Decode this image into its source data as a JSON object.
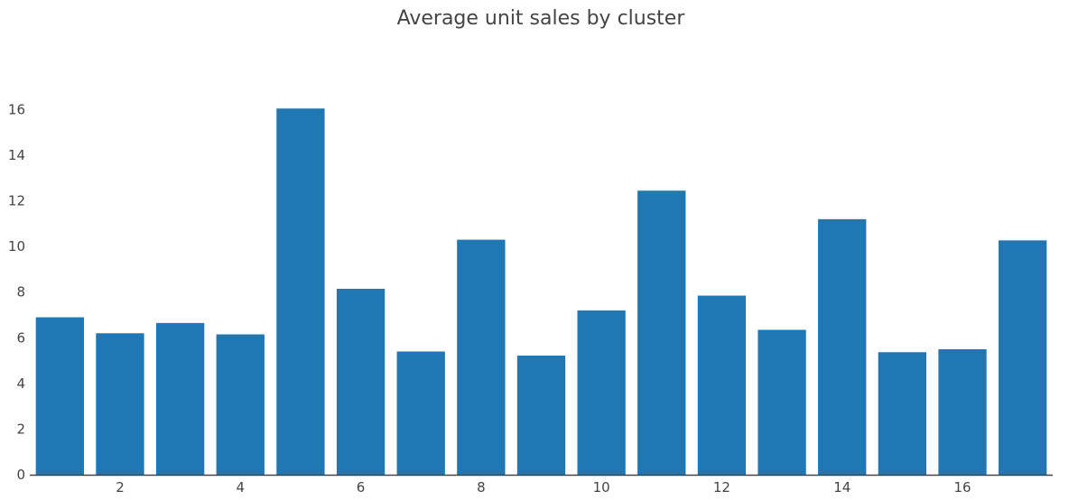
{
  "chart_data": {
    "type": "bar",
    "title": "Average unit sales by cluster",
    "xlabel": "",
    "ylabel": "",
    "x": [
      1,
      2,
      3,
      4,
      5,
      6,
      7,
      8,
      9,
      10,
      11,
      12,
      13,
      14,
      15,
      16,
      17
    ],
    "values": [
      6.9,
      6.2,
      6.65,
      6.15,
      16.05,
      8.15,
      5.4,
      10.3,
      5.22,
      7.2,
      12.45,
      7.85,
      6.35,
      11.2,
      5.37,
      5.5,
      10.27
    ],
    "x_tick_labels": [
      "2",
      "4",
      "6",
      "8",
      "10",
      "12",
      "14",
      "16"
    ],
    "x_tick_values": [
      2,
      4,
      6,
      8,
      10,
      12,
      14,
      16
    ],
    "y_tick_labels": [
      "0",
      "2",
      "4",
      "6",
      "8",
      "10",
      "12",
      "14",
      "16"
    ],
    "y_tick_values": [
      0,
      2,
      4,
      6,
      8,
      10,
      12,
      14,
      16
    ],
    "xlim": [
      0.5,
      17.5
    ],
    "ylim": [
      0,
      16.85
    ],
    "grid": false,
    "bar_color": "#1f77b4",
    "text_color": "#444444",
    "axis_color": "#444444"
  }
}
